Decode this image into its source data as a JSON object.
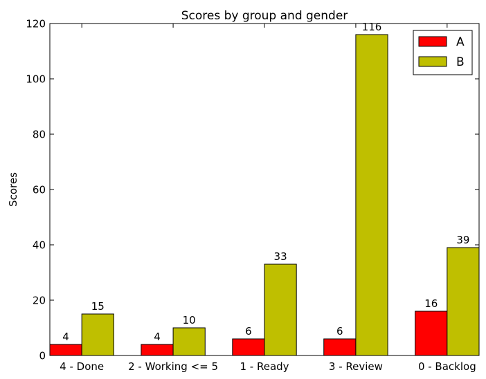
{
  "chart_data": {
    "type": "bar",
    "title": "Scores by group and gender",
    "xlabel": "",
    "ylabel": "Scores",
    "categories": [
      "4 - Done",
      "2 - Working <= 5",
      "1 - Ready",
      "3 - Review",
      "0 - Backlog"
    ],
    "series": [
      {
        "name": "A",
        "values": [
          4,
          4,
          6,
          6,
          16
        ],
        "color": "#ff0000"
      },
      {
        "name": "B",
        "values": [
          15,
          10,
          33,
          116,
          39
        ],
        "color": "#bfbf00"
      }
    ],
    "ylim": [
      0,
      120
    ],
    "yticks": [
      0,
      20,
      40,
      60,
      80,
      100,
      120
    ],
    "grid": false,
    "legend_position": "top-right",
    "data_labels": true
  }
}
